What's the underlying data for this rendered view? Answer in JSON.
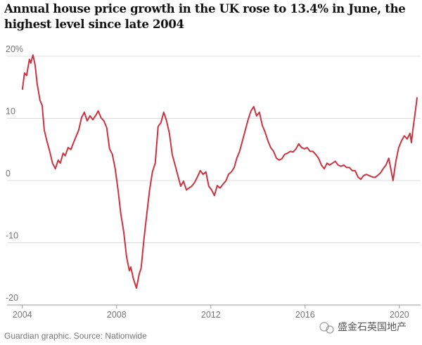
{
  "chart_data": {
    "type": "line",
    "title": "Annual house price growth in the UK rose to 13.4% in June, the highest level since late 2004",
    "source": "Guardian graphic. Source: Nationwide",
    "watermark": "盛金石英国地产",
    "xlim": [
      2003.35,
      2020.9
    ],
    "ylim": [
      -20,
      20
    ],
    "xticks": [
      2004,
      2008,
      2012,
      2016,
      2020
    ],
    "yticks": [
      {
        "value": 20,
        "label": "20%"
      },
      10,
      0,
      -10,
      -20
    ],
    "grid": true,
    "series": [
      {
        "color": "#cc3340",
        "x": [
          2004.0,
          2004.09,
          2004.18,
          2004.3,
          2004.36,
          2004.45,
          2004.54,
          2004.63,
          2004.75,
          2004.84,
          2004.93,
          2005.04,
          2005.16,
          2005.28,
          2005.4,
          2005.52,
          2005.61,
          2005.73,
          2005.82,
          2005.94,
          2006.06,
          2006.15,
          2006.27,
          2006.39,
          2006.51,
          2006.63,
          2006.75,
          2006.87,
          2006.99,
          2007.1,
          2007.22,
          2007.34,
          2007.46,
          2007.58,
          2007.7,
          2007.82,
          2007.94,
          2008.06,
          2008.18,
          2008.3,
          2008.42,
          2008.54,
          2008.6,
          2008.72,
          2008.84,
          2008.96,
          2009.04,
          2009.16,
          2009.28,
          2009.4,
          2009.52,
          2009.64,
          2009.76,
          2009.88,
          2010.0,
          2010.12,
          2010.24,
          2010.36,
          2010.48,
          2010.6,
          2010.72,
          2010.84,
          2010.96,
          2011.07,
          2011.19,
          2011.31,
          2011.43,
          2011.55,
          2011.67,
          2011.79,
          2011.91,
          2012.03,
          2012.15,
          2012.27,
          2012.39,
          2012.51,
          2012.63,
          2012.75,
          2012.87,
          2012.99,
          2013.1,
          2013.22,
          2013.34,
          2013.46,
          2013.58,
          2013.7,
          2013.82,
          2013.94,
          2014.06,
          2014.18,
          2014.3,
          2014.42,
          2014.54,
          2014.66,
          2014.78,
          2014.9,
          2015.01,
          2015.13,
          2015.25,
          2015.37,
          2015.49,
          2015.61,
          2015.73,
          2015.85,
          2015.97,
          2016.09,
          2016.21,
          2016.33,
          2016.45,
          2016.57,
          2016.69,
          2016.81,
          2016.93,
          2017.04,
          2017.16,
          2017.28,
          2017.4,
          2017.52,
          2017.64,
          2017.76,
          2017.88,
          2018.0,
          2018.12,
          2018.24,
          2018.36,
          2018.48,
          2018.6,
          2018.72,
          2018.84,
          2018.96,
          2019.07,
          2019.19,
          2019.31,
          2019.43,
          2019.55,
          2019.73,
          2019.85,
          2019.97,
          2020.09,
          2020.21,
          2020.33,
          2020.45,
          2020.51,
          2020.57,
          2020.63,
          2020.69,
          2020.75
        ],
        "values": [
          14.6,
          17.3,
          16.9,
          19.5,
          18.9,
          20.2,
          18.6,
          15.5,
          12.9,
          12.1,
          8.1,
          6.4,
          4.7,
          2.8,
          1.9,
          3.3,
          2.8,
          4.4,
          4.0,
          5.3,
          5.0,
          5.9,
          7.0,
          8.1,
          10.1,
          11.0,
          9.6,
          10.4,
          9.8,
          10.4,
          11.2,
          10.1,
          9.6,
          8.5,
          5.1,
          4.2,
          1.9,
          -1.5,
          -5.4,
          -8.2,
          -12.2,
          -14.5,
          -13.9,
          -15.9,
          -17.3,
          -15.0,
          -14.1,
          -9.4,
          -5.4,
          -1.5,
          1.4,
          2.8,
          8.7,
          9.3,
          11.0,
          9.6,
          7.6,
          4.2,
          2.5,
          0.8,
          -0.9,
          -0.1,
          -1.5,
          -1.2,
          -0.9,
          -0.3,
          0.6,
          1.6,
          1.0,
          1.4,
          -0.9,
          -1.5,
          -2.4,
          -0.8,
          -1.2,
          -0.6,
          -0.1,
          1.0,
          1.4,
          2.1,
          3.6,
          4.7,
          6.4,
          8.1,
          9.8,
          11.2,
          11.9,
          10.4,
          11.0,
          8.9,
          7.8,
          6.4,
          5.3,
          4.7,
          3.6,
          3.3,
          3.5,
          4.2,
          4.4,
          4.7,
          4.6,
          5.1,
          5.9,
          5.3,
          5.1,
          5.3,
          4.7,
          4.7,
          4.2,
          3.6,
          2.5,
          1.9,
          2.8,
          2.5,
          2.8,
          3.1,
          2.5,
          2.3,
          2.5,
          2.1,
          2.1,
          1.6,
          1.6,
          0.6,
          0.2,
          0.8,
          1.0,
          0.8,
          0.6,
          0.5,
          0.8,
          1.2,
          1.9,
          2.5,
          3.6,
          0.0,
          3.1,
          5.3,
          6.4,
          7.2,
          6.7,
          7.6,
          6.1,
          8.1,
          9.8,
          11.5,
          13.4
        ]
      }
    ]
  }
}
